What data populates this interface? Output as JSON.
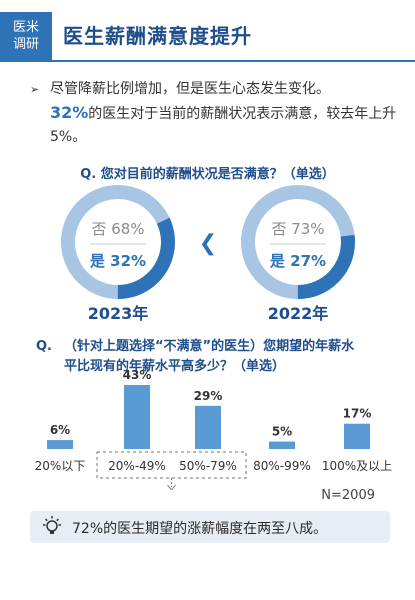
{
  "header": {
    "brand_line1": "医米",
    "brand_line2": "调研",
    "title": "医生薪酬满意度提升"
  },
  "intro": {
    "line1": "尽管降薪比例增加，但是医生心态发生变化。",
    "highlight": "32%",
    "line2_rest": "的医生对于当前的薪酬状况表示满意，较去年上升5%。"
  },
  "colors": {
    "accent": "#2e72b8",
    "ring_light": "#a8c5e3",
    "bar": "#5b9bd5",
    "title": "#1f4e8c"
  },
  "chart_data": [
    {
      "type": "pie",
      "title": "Q. 您对目前的薪酬状况是否满意？（单选）",
      "donuts": [
        {
          "year": "2023年",
          "slices": [
            {
              "label": "否",
              "value": 68,
              "text": "否 68%"
            },
            {
              "label": "是",
              "value": 32,
              "text": "是 32%"
            }
          ]
        },
        {
          "year": "2022年",
          "slices": [
            {
              "label": "否",
              "value": 73,
              "text": "否 73%"
            },
            {
              "label": "是",
              "value": 27,
              "text": "是 27%"
            }
          ]
        }
      ],
      "arrow_glyph": "❮"
    },
    {
      "type": "bar",
      "title_prefix": "Q.",
      "title_line1": "（针对上题选择“不满意”的医生）您期望的年薪水",
      "title_line2": "平比现有的年薪水平高多少？（单选）",
      "categories": [
        "20%以下",
        "20%-49%",
        "50%-79%",
        "80%-99%",
        "100%及以上"
      ],
      "values": [
        6,
        43,
        29,
        5,
        17
      ],
      "value_labels": [
        "6%",
        "43%",
        "29%",
        "5%",
        "17%"
      ],
      "highlighted_categories": [
        "20%-49%",
        "50%-79%"
      ],
      "n_label": "N=2009"
    }
  ],
  "summary": {
    "icon": "lightbulb-icon",
    "text": "72%的医生期望的涨薪幅度在两至八成。"
  }
}
